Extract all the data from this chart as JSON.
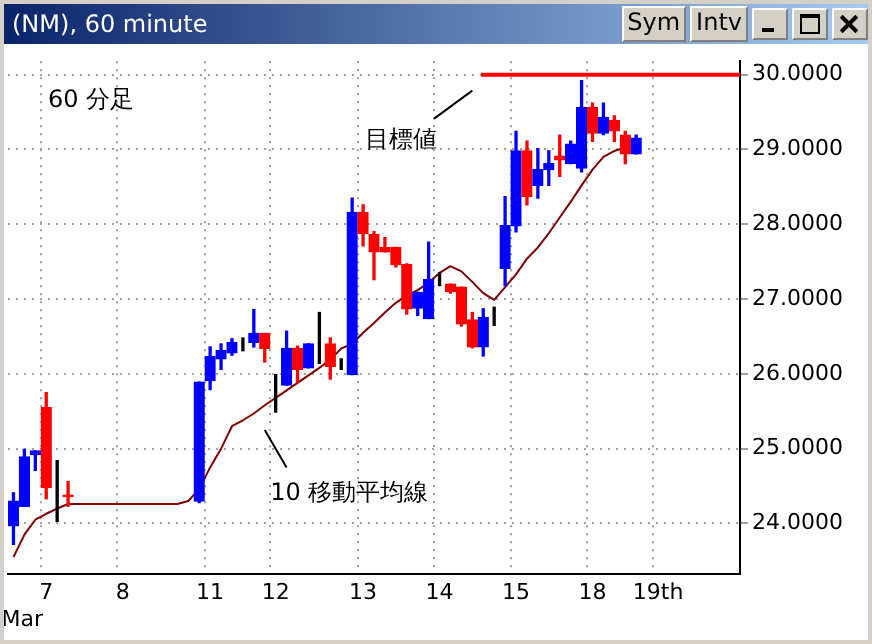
{
  "chart_data": {
    "type": "candlestick",
    "title": "(NM), 60 minute",
    "categories": [
      null,
      null,
      null,
      "7",
      null,
      null,
      null,
      null,
      null,
      null,
      "8",
      null,
      null,
      null,
      null,
      null,
      null,
      null,
      "11",
      null,
      null,
      null,
      null,
      null,
      "12",
      null,
      null,
      null,
      null,
      null,
      null,
      null,
      "13",
      null,
      null,
      null,
      null,
      null,
      null,
      "14",
      null,
      null,
      null,
      null,
      null,
      null,
      "15",
      null,
      null,
      null,
      null,
      null,
      null,
      "18",
      null,
      null,
      null,
      null,
      null,
      "19th",
      null,
      null,
      null,
      null,
      null,
      null,
      null
    ],
    "ohlc": [
      [
        23.97,
        24.41,
        23.72,
        24.3
      ],
      [
        24.23,
        24.99,
        24.23,
        24.89
      ],
      [
        24.92,
        24.97,
        24.71,
        24.97
      ],
      [
        25.55,
        25.75,
        24.33,
        24.48
      ],
      [
        24.45,
        24.84,
        24.03,
        24.45
      ],
      [
        24.38,
        24.56,
        24.23,
        24.36
      ],
      null,
      null,
      null,
      null,
      null,
      null,
      null,
      null,
      null,
      null,
      null,
      [
        24.3,
        25.89,
        24.28,
        25.89
      ],
      [
        25.91,
        26.36,
        25.79,
        26.23
      ],
      [
        26.2,
        26.4,
        26.06,
        26.31
      ],
      [
        26.28,
        26.47,
        26.25,
        26.42
      ],
      [
        26.4,
        26.48,
        26.31,
        26.4
      ],
      [
        26.42,
        26.86,
        26.36,
        26.54
      ],
      [
        26.54,
        26.54,
        26.16,
        26.34
      ],
      [
        25.85,
        25.99,
        25.49,
        25.85
      ],
      [
        25.85,
        26.57,
        25.85,
        26.34
      ],
      [
        26.34,
        26.37,
        25.89,
        26.06
      ],
      [
        26.08,
        26.4,
        26.08,
        26.4
      ],
      [
        26.4,
        26.82,
        26.14,
        26.4
      ],
      [
        26.4,
        26.48,
        25.93,
        26.1
      ],
      [
        26.13,
        26.2,
        26.06,
        26.13
      ],
      [
        25.99,
        28.35,
        25.99,
        28.16
      ],
      [
        28.16,
        28.26,
        27.71,
        27.88
      ],
      [
        27.86,
        27.9,
        27.26,
        27.63
      ],
      [
        27.69,
        27.82,
        27.63,
        27.63
      ],
      [
        27.69,
        27.69,
        27.43,
        27.46
      ],
      [
        27.46,
        27.47,
        26.8,
        26.87
      ],
      [
        26.88,
        27.09,
        26.78,
        27.09
      ],
      [
        26.74,
        27.76,
        26.74,
        27.26
      ],
      [
        27.26,
        27.35,
        27.18,
        27.26
      ],
      [
        27.2,
        27.2,
        27.08,
        27.1
      ],
      [
        27.16,
        27.16,
        26.64,
        26.67
      ],
      [
        26.72,
        26.82,
        26.35,
        26.36
      ],
      [
        26.36,
        26.87,
        26.24,
        26.75
      ],
      [
        26.78,
        26.89,
        26.65,
        26.78
      ],
      [
        27.41,
        28.37,
        27.18,
        27.98
      ],
      [
        27.98,
        29.24,
        27.9,
        28.98
      ],
      [
        28.98,
        29.11,
        28.26,
        28.37
      ],
      [
        28.52,
        29.01,
        28.35,
        28.73
      ],
      [
        28.73,
        28.98,
        28.52,
        28.81
      ],
      [
        28.91,
        29.19,
        28.64,
        28.86
      ],
      [
        28.81,
        29.11,
        28.81,
        29.07
      ],
      [
        28.75,
        29.92,
        28.7,
        29.56
      ],
      [
        29.56,
        29.62,
        29.11,
        29.22
      ],
      [
        29.22,
        29.62,
        29.2,
        29.43
      ],
      [
        29.39,
        29.45,
        29.11,
        29.25
      ],
      [
        29.19,
        29.24,
        28.81,
        28.94
      ],
      [
        28.94,
        29.19,
        28.94,
        29.15
      ],
      null,
      null,
      null,
      null,
      null,
      null,
      null,
      null,
      null
    ],
    "colors": [
      "#0000ff",
      "#0000ff",
      "#0000ff",
      "#ff0000",
      "#000000",
      "#ff0000",
      null,
      null,
      null,
      null,
      null,
      null,
      null,
      null,
      null,
      null,
      null,
      "#0000ff",
      "#0000ff",
      "#0000ff",
      "#0000ff",
      "#000000",
      "#0000ff",
      "#ff0000",
      "#000000",
      "#0000ff",
      "#ff0000",
      "#0000ff",
      "#000000",
      "#ff0000",
      "#000000",
      "#0000ff",
      "#ff0000",
      "#ff0000",
      "#ff0000",
      "#ff0000",
      "#ff0000",
      "#0000ff",
      "#0000ff",
      "#000000",
      "#ff0000",
      "#ff0000",
      "#ff0000",
      "#0000ff",
      "#000000",
      "#0000ff",
      "#0000ff",
      "#ff0000",
      "#0000ff",
      "#0000ff",
      "#ff0000",
      "#0000ff",
      "#0000ff",
      "#ff0000",
      "#0000ff",
      "#ff0000",
      "#ff0000",
      "#0000ff",
      null,
      null,
      null,
      null,
      null,
      null,
      null,
      null,
      null
    ],
    "series": [
      {
        "type": "line",
        "name": "10 移動平均線",
        "color": "#800000",
        "values": [
          23.55,
          23.85,
          24.05,
          24.13,
          24.2,
          24.26,
          24.26,
          24.26,
          24.26,
          24.26,
          24.26,
          24.26,
          24.26,
          24.26,
          24.26,
          24.26,
          24.3,
          24.46,
          24.75,
          25.0,
          25.3,
          25.38,
          25.47,
          25.58,
          25.68,
          25.78,
          25.88,
          25.98,
          26.08,
          26.19,
          26.34,
          26.4,
          26.55,
          26.68,
          26.82,
          26.95,
          27.05,
          27.12,
          27.22,
          27.35,
          27.44,
          27.37,
          27.23,
          27.08,
          26.99,
          27.16,
          27.33,
          27.54,
          27.69,
          27.88,
          28.09,
          28.3,
          28.52,
          28.73,
          28.9,
          28.98,
          29.03,
          29.04,
          null,
          null,
          null,
          null,
          null,
          null,
          null,
          null,
          null
        ]
      }
    ],
    "ylim": [
      23.33,
      30.18
    ],
    "yticks": [
      {
        "value": 24,
        "label": "24.0000"
      },
      {
        "value": 25,
        "label": "25.0000"
      },
      {
        "value": 26,
        "label": "26.0000"
      },
      {
        "value": 27,
        "label": "27.0000"
      },
      {
        "value": 28,
        "label": "28.0000"
      },
      {
        "value": 29,
        "label": "29.0000"
      },
      {
        "value": 30,
        "label": "30.0000"
      }
    ],
    "ref_lines": [
      {
        "axis": "y",
        "value": 30,
        "label": "目標値",
        "color": "#ff0000"
      }
    ],
    "grid": true,
    "legend": false,
    "annotations": [
      "60 分足",
      "Mar",
      "Sym",
      "Intv"
    ]
  }
}
